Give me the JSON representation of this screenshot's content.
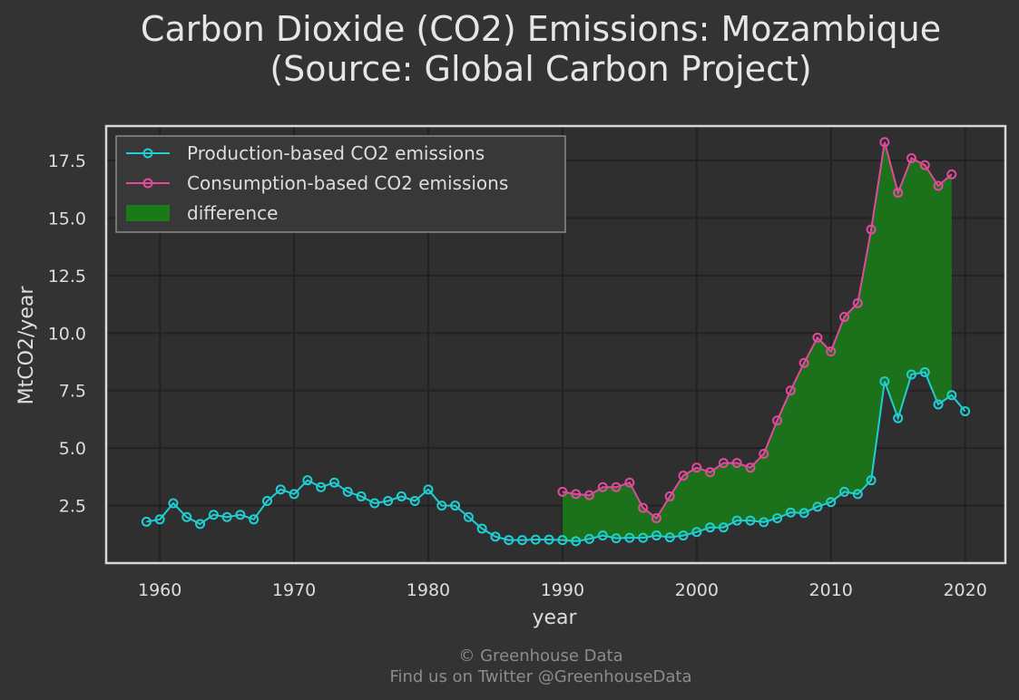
{
  "chart_data": {
    "type": "line",
    "title_line1": "Carbon Dioxide (CO2) Emissions: Mozambique",
    "title_line2": "(Source: Global Carbon Project)",
    "xlabel": "year",
    "ylabel": "MtCO2/year",
    "xlim": [
      1956,
      2023
    ],
    "ylim": [
      0.0,
      19.0
    ],
    "xticks": [
      1960,
      1970,
      1980,
      1990,
      2000,
      2010,
      2020
    ],
    "yticks": [
      2.5,
      5.0,
      7.5,
      10.0,
      12.5,
      15.0,
      17.5
    ],
    "grid": true,
    "legend_position": "top-left",
    "series": [
      {
        "name": "Production-based CO2 emissions",
        "color": "#1fcfd4",
        "x": [
          1959,
          1960,
          1961,
          1962,
          1963,
          1964,
          1965,
          1966,
          1967,
          1968,
          1969,
          1970,
          1971,
          1972,
          1973,
          1974,
          1975,
          1976,
          1977,
          1978,
          1979,
          1980,
          1981,
          1982,
          1983,
          1984,
          1985,
          1986,
          1987,
          1988,
          1989,
          1990,
          1991,
          1992,
          1993,
          1994,
          1995,
          1996,
          1997,
          1998,
          1999,
          2000,
          2001,
          2002,
          2003,
          2004,
          2005,
          2006,
          2007,
          2008,
          2009,
          2010,
          2011,
          2012,
          2013,
          2014,
          2015,
          2016,
          2017,
          2018,
          2019,
          2020
        ],
        "y": [
          1.8,
          1.9,
          2.6,
          2.0,
          1.7,
          2.1,
          2.0,
          2.1,
          1.9,
          2.7,
          3.2,
          3.0,
          3.6,
          3.3,
          3.5,
          3.1,
          2.9,
          2.6,
          2.7,
          2.9,
          2.7,
          3.2,
          2.5,
          2.5,
          2.0,
          1.5,
          1.15,
          1.0,
          1.0,
          1.02,
          1.02,
          1.0,
          0.95,
          1.05,
          1.2,
          1.08,
          1.1,
          1.1,
          1.2,
          1.12,
          1.2,
          1.35,
          1.55,
          1.55,
          1.85,
          1.85,
          1.78,
          1.95,
          2.2,
          2.18,
          2.45,
          2.65,
          3.1,
          3.0,
          3.6,
          7.9,
          6.3,
          8.2,
          8.3,
          6.9,
          7.3,
          6.6
        ]
      },
      {
        "name": "Consumption-based CO2 emissions",
        "color": "#e34a9e",
        "x": [
          1990,
          1991,
          1992,
          1993,
          1994,
          1995,
          1996,
          1997,
          1998,
          1999,
          2000,
          2001,
          2002,
          2003,
          2004,
          2005,
          2006,
          2007,
          2008,
          2009,
          2010,
          2011,
          2012,
          2013,
          2014,
          2015,
          2016,
          2017,
          2018,
          2019
        ],
        "y": [
          3.1,
          3.0,
          2.95,
          3.3,
          3.3,
          3.5,
          2.4,
          1.95,
          2.9,
          3.8,
          4.15,
          3.95,
          4.35,
          4.35,
          4.15,
          4.75,
          6.2,
          7.5,
          8.7,
          9.8,
          9.2,
          10.7,
          11.3,
          14.5,
          18.3,
          16.1,
          17.6,
          17.3,
          16.4,
          16.9
        ]
      }
    ],
    "difference": {
      "name": "difference",
      "color": "#1a7a1a",
      "x_range": [
        1990,
        2019
      ]
    }
  },
  "footer": {
    "line1": "© Greenhouse Data",
    "line2": "Find us on Twitter @GreenhouseData"
  }
}
